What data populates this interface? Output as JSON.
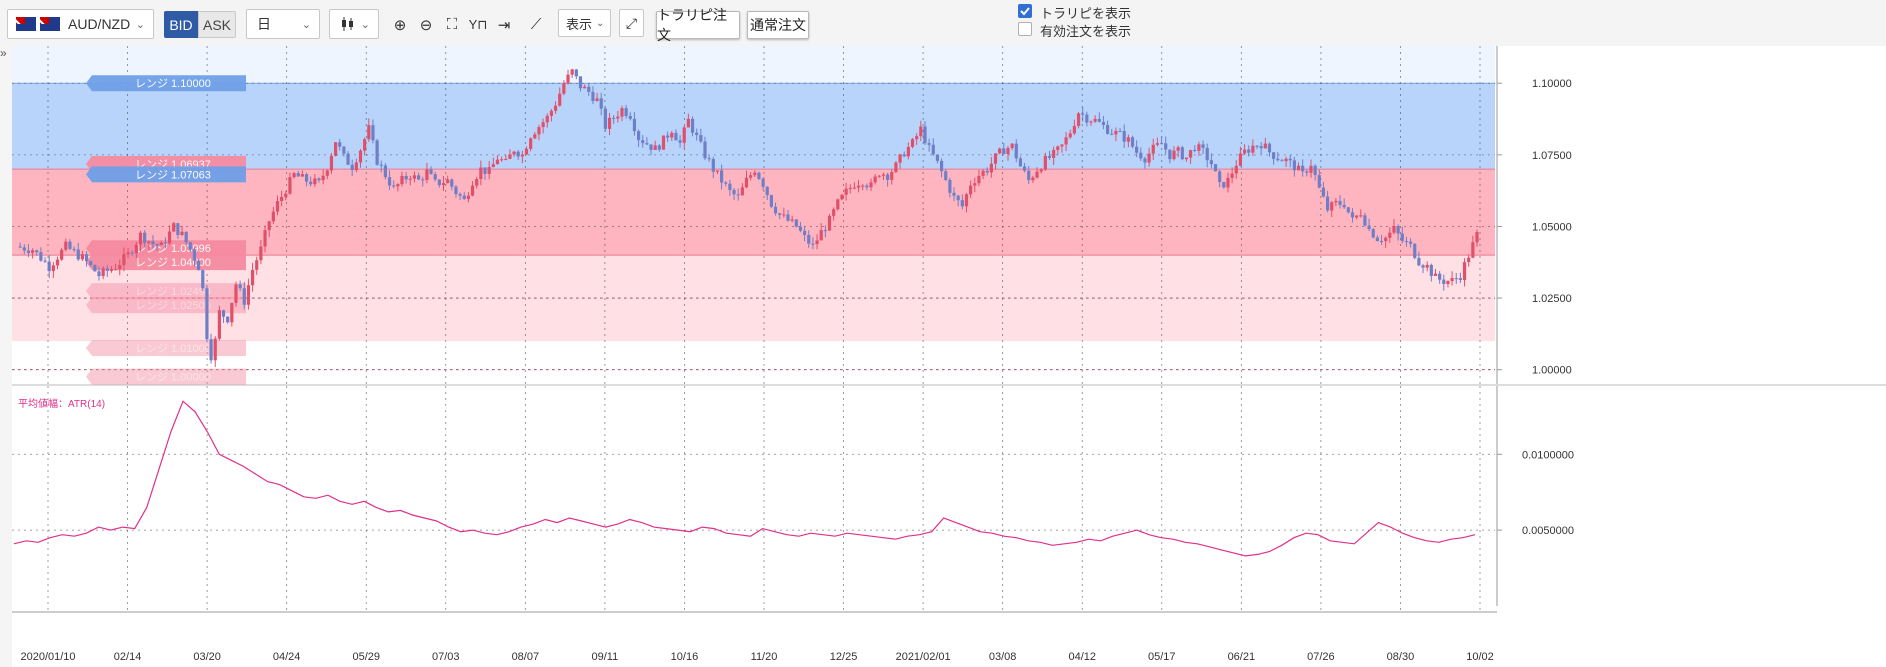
{
  "toolbar": {
    "symbol": "AUD/NZD",
    "bid_label": "BID",
    "ask_label": "ASK",
    "timeframe": "日",
    "chart_type_icon": "candlestick-icon",
    "display_label": "表示",
    "traripi_order_label": "トラリピ注文",
    "normal_order_label": "通常注文",
    "show_traripi_label": "トラリピを表示",
    "show_traripi_checked": true,
    "show_active_orders_label": "有効注文を表示",
    "show_active_orders_checked": false
  },
  "colors": {
    "bid_active": "#2f5ba6",
    "up_candle": "#e0506a",
    "down_candle": "#6f7fc7",
    "atr_line": "#e0308a",
    "sell_zone": "#b9d4fb",
    "buy_zone_upper": "#ffb5c0",
    "buy_zone_lower": "#ffe0e5"
  },
  "chart_data": [
    {
      "type": "candlestick",
      "x_tick_labels": [
        "2020/01/10",
        "02/14",
        "03/20",
        "04/24",
        "05/29",
        "07/03",
        "08/07",
        "09/11",
        "10/16",
        "11/20",
        "12/25",
        "2021/02/01",
        "03/08",
        "04/12",
        "05/17",
        "06/21",
        "07/26",
        "08/30",
        "10/02"
      ],
      "y_tick_labels": [
        "1.00000",
        "1.02500",
        "1.05000",
        "1.07500",
        "1.10000"
      ],
      "ylim": [
        0.995,
        1.113
      ],
      "grid": true,
      "range_labels": [
        {
          "text": "レンジ 1.10000",
          "value": 1.1,
          "side": "sell"
        },
        {
          "text": "レンジ 1.06937",
          "value": 1.06937,
          "side": "buy"
        },
        {
          "text": "レンジ 1.07063",
          "value": 1.07063,
          "side": "sell"
        },
        {
          "text": "レンジ 1.03996",
          "value": 1.03996,
          "side": "buy"
        },
        {
          "text": "レンジ 1.04000",
          "value": 1.04,
          "side": "buy"
        },
        {
          "text": "レンジ 1.02499",
          "value": 1.02499,
          "side": "buy"
        },
        {
          "text": "レンジ 1.02500",
          "value": 1.025,
          "side": "buy"
        },
        {
          "text": "レンジ 1.01000",
          "value": 1.01,
          "side": "buy"
        },
        {
          "text": "レンジ 1.00000",
          "value": 1.0,
          "side": "buy"
        }
      ],
      "zones": [
        {
          "name": "sell",
          "from": 1.07,
          "to": 1.1
        },
        {
          "name": "buy-upper",
          "from": 1.04,
          "to": 1.07
        },
        {
          "name": "buy-lower",
          "from": 1.01,
          "to": 1.04
        }
      ],
      "close_path": [
        [
          0,
          1.043
        ],
        [
          4,
          1.042
        ],
        [
          8,
          1.036
        ],
        [
          12,
          1.043
        ],
        [
          16,
          1.039
        ],
        [
          20,
          1.033
        ],
        [
          24,
          1.036
        ],
        [
          27,
          1.04
        ],
        [
          30,
          1.047
        ],
        [
          33,
          1.044
        ],
        [
          35,
          1.043
        ],
        [
          38,
          1.05
        ],
        [
          40,
          1.047
        ],
        [
          42,
          1.042
        ],
        [
          44,
          1.036
        ],
        [
          45,
          1.028
        ],
        [
          46,
          1.012
        ],
        [
          47,
          1.005
        ],
        [
          48,
          1.01
        ],
        [
          49,
          1.02
        ],
        [
          51,
          1.018
        ],
        [
          53,
          1.03
        ],
        [
          55,
          1.024
        ],
        [
          57,
          1.035
        ],
        [
          59,
          1.042
        ],
        [
          61,
          1.052
        ],
        [
          63,
          1.058
        ],
        [
          65,
          1.063
        ],
        [
          67,
          1.068
        ],
        [
          70,
          1.066
        ],
        [
          73,
          1.065
        ],
        [
          75,
          1.071
        ],
        [
          77,
          1.08
        ],
        [
          79,
          1.074
        ],
        [
          81,
          1.071
        ],
        [
          83,
          1.077
        ],
        [
          85,
          1.084
        ],
        [
          87,
          1.073
        ],
        [
          89,
          1.068
        ],
        [
          91,
          1.063
        ],
        [
          93,
          1.066
        ],
        [
          95,
          1.068
        ],
        [
          97,
          1.066
        ],
        [
          99,
          1.069
        ],
        [
          101,
          1.065
        ],
        [
          104,
          1.066
        ],
        [
          106,
          1.062
        ],
        [
          108,
          1.059
        ],
        [
          110,
          1.066
        ],
        [
          112,
          1.07
        ],
        [
          114,
          1.069
        ],
        [
          116,
          1.074
        ],
        [
          118,
          1.072
        ],
        [
          120,
          1.077
        ],
        [
          122,
          1.075
        ],
        [
          124,
          1.082
        ],
        [
          126,
          1.085
        ],
        [
          128,
          1.088
        ],
        [
          130,
          1.093
        ],
        [
          132,
          1.1
        ],
        [
          134,
          1.104
        ],
        [
          136,
          1.099
        ],
        [
          138,
          1.097
        ],
        [
          140,
          1.094
        ],
        [
          142,
          1.085
        ],
        [
          144,
          1.088
        ],
        [
          146,
          1.091
        ],
        [
          148,
          1.089
        ],
        [
          150,
          1.081
        ],
        [
          152,
          1.079
        ],
        [
          154,
          1.077
        ],
        [
          156,
          1.08
        ],
        [
          158,
          1.084
        ],
        [
          160,
          1.079
        ],
        [
          162,
          1.087
        ],
        [
          164,
          1.081
        ],
        [
          166,
          1.075
        ],
        [
          168,
          1.07
        ],
        [
          170,
          1.066
        ],
        [
          172,
          1.062
        ],
        [
          174,
          1.06
        ],
        [
          176,
          1.066
        ],
        [
          178,
          1.07
        ],
        [
          180,
          1.065
        ],
        [
          182,
          1.058
        ],
        [
          184,
          1.054
        ],
        [
          186,
          1.052
        ],
        [
          188,
          1.05
        ],
        [
          190,
          1.046
        ],
        [
          192,
          1.043
        ],
        [
          194,
          1.048
        ],
        [
          196,
          1.052
        ],
        [
          198,
          1.058
        ],
        [
          200,
          1.062
        ],
        [
          202,
          1.065
        ],
        [
          204,
          1.066
        ],
        [
          206,
          1.064
        ],
        [
          208,
          1.069
        ],
        [
          210,
          1.068
        ],
        [
          212,
          1.071
        ],
        [
          214,
          1.076
        ],
        [
          216,
          1.079
        ],
        [
          218,
          1.084
        ],
        [
          220,
          1.077
        ],
        [
          222,
          1.072
        ],
        [
          224,
          1.066
        ],
        [
          226,
          1.06
        ],
        [
          228,
          1.057
        ],
        [
          230,
          1.065
        ],
        [
          232,
          1.068
        ],
        [
          234,
          1.07
        ],
        [
          236,
          1.074
        ],
        [
          238,
          1.077
        ],
        [
          240,
          1.078
        ],
        [
          242,
          1.071
        ],
        [
          244,
          1.066
        ],
        [
          246,
          1.07
        ],
        [
          248,
          1.073
        ],
        [
          250,
          1.075
        ],
        [
          252,
          1.078
        ],
        [
          254,
          1.083
        ],
        [
          256,
          1.09
        ],
        [
          258,
          1.088
        ],
        [
          260,
          1.087
        ],
        [
          262,
          1.085
        ],
        [
          264,
          1.083
        ],
        [
          266,
          1.082
        ],
        [
          268,
          1.08
        ],
        [
          270,
          1.076
        ],
        [
          272,
          1.074
        ],
        [
          274,
          1.077
        ],
        [
          276,
          1.079
        ],
        [
          278,
          1.075
        ],
        [
          280,
          1.076
        ],
        [
          282,
          1.074
        ],
        [
          284,
          1.078
        ],
        [
          286,
          1.076
        ],
        [
          288,
          1.072
        ],
        [
          290,
          1.064
        ],
        [
          292,
          1.066
        ],
        [
          294,
          1.072
        ],
        [
          296,
          1.076
        ],
        [
          298,
          1.078
        ],
        [
          300,
          1.079
        ],
        [
          302,
          1.076
        ],
        [
          304,
          1.074
        ],
        [
          306,
          1.073
        ],
        [
          308,
          1.071
        ],
        [
          310,
          1.068
        ],
        [
          312,
          1.072
        ],
        [
          314,
          1.063
        ],
        [
          316,
          1.056
        ],
        [
          318,
          1.058
        ],
        [
          320,
          1.058
        ],
        [
          322,
          1.052
        ],
        [
          324,
          1.055
        ],
        [
          326,
          1.049
        ],
        [
          328,
          1.046
        ],
        [
          330,
          1.046
        ],
        [
          332,
          1.049
        ],
        [
          334,
          1.045
        ],
        [
          336,
          1.043
        ],
        [
          338,
          1.038
        ],
        [
          340,
          1.036
        ],
        [
          342,
          1.032
        ],
        [
          344,
          1.031
        ],
        [
          346,
          1.031
        ],
        [
          348,
          1.033
        ],
        [
          350,
          1.04
        ],
        [
          352,
          1.047
        ]
      ]
    },
    {
      "type": "line",
      "title": "平均値幅：ATR(14)",
      "y_tick_labels": [
        "0.0050000",
        "0.0100000"
      ],
      "ylim": [
        0.0,
        0.0145
      ],
      "grid": true,
      "series": [
        {
          "values": [
            0.0041,
            0.0043,
            0.0042,
            0.0045,
            0.0047,
            0.0046,
            0.0048,
            0.0052,
            0.005,
            0.0052,
            0.0051,
            0.0065,
            0.009,
            0.0115,
            0.0135,
            0.0128,
            0.0115,
            0.01,
            0.0096,
            0.0092,
            0.0087,
            0.0082,
            0.008,
            0.0076,
            0.0072,
            0.0071,
            0.0073,
            0.0069,
            0.0067,
            0.0069,
            0.0065,
            0.0062,
            0.0063,
            0.006,
            0.0058,
            0.0056,
            0.0052,
            0.0049,
            0.005,
            0.0048,
            0.0047,
            0.0049,
            0.0052,
            0.0054,
            0.0057,
            0.0055,
            0.0058,
            0.0056,
            0.0054,
            0.0052,
            0.0054,
            0.0057,
            0.0055,
            0.0052,
            0.0051,
            0.005,
            0.0049,
            0.0052,
            0.0051,
            0.0048,
            0.0047,
            0.0046,
            0.0051,
            0.0049,
            0.0047,
            0.0046,
            0.0048,
            0.0047,
            0.0046,
            0.0048,
            0.0047,
            0.0046,
            0.0045,
            0.0044,
            0.0046,
            0.0047,
            0.0049,
            0.0058,
            0.0055,
            0.0052,
            0.0049,
            0.0048,
            0.0046,
            0.0045,
            0.0043,
            0.0042,
            0.004,
            0.0041,
            0.0042,
            0.0044,
            0.0043,
            0.0046,
            0.0048,
            0.005,
            0.0047,
            0.0045,
            0.0044,
            0.0042,
            0.0041,
            0.0039,
            0.0037,
            0.0035,
            0.0033,
            0.0034,
            0.0036,
            0.004,
            0.0045,
            0.0048,
            0.0047,
            0.0043,
            0.0042,
            0.0041,
            0.0048,
            0.0055,
            0.0052,
            0.0048,
            0.0045,
            0.0043,
            0.0042,
            0.0044,
            0.0045,
            0.0047
          ]
        }
      ]
    }
  ]
}
